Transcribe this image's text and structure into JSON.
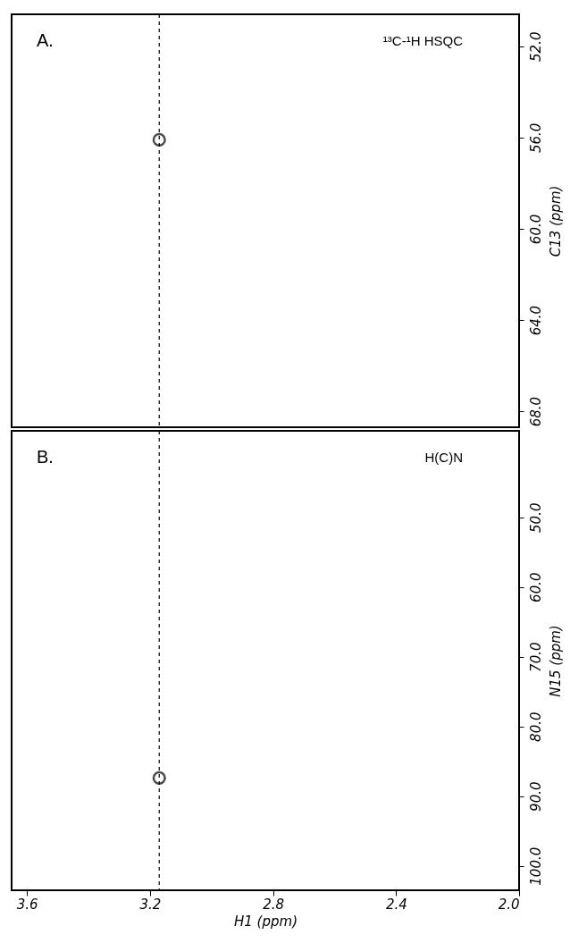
{
  "chart_data": [
    {
      "type": "scatter",
      "x": [
        3.17
      ],
      "values": [
        56.1
      ],
      "color": "#000000",
      "marker": "circle",
      "ylabel": "C13  (ppm)",
      "xlim": [
        3.65,
        2.0
      ],
      "ylim": [
        68.7,
        50.6
      ],
      "yticks": [
        {
          "value": 52,
          "label": "52.0"
        },
        {
          "value": 56,
          "label": "56.0"
        },
        {
          "value": 60,
          "label": "60.0"
        },
        {
          "value": 64,
          "label": "64.0"
        },
        {
          "value": 68,
          "label": "68.0"
        }
      ],
      "tick_labels": "y",
      "grid": false,
      "annotations": [
        "A.",
        "¹³C-¹H HSQC"
      ],
      "ref_lines": [
        {
          "axis": "x",
          "value": 3.17,
          "label": null,
          "line_style": "dashed",
          "color": "#000000"
        }
      ]
    },
    {
      "type": "scatter",
      "x": [
        3.17
      ],
      "values": [
        87.4
      ],
      "color": "#000000",
      "marker": "circle",
      "xlabel": "H1  (ppm)",
      "ylabel": "N15  (ppm)",
      "xlim": [
        3.65,
        2.0
      ],
      "ylim": [
        103.5,
        37.6
      ],
      "xticks": [
        3.6,
        3.2,
        2.8,
        2.4,
        {
          "value": 2.0,
          "label": "2.0"
        }
      ],
      "yticks": [
        {
          "value": 50,
          "label": "50.0"
        },
        {
          "value": 60,
          "label": "60.0"
        },
        {
          "value": 70,
          "label": "70.0"
        },
        {
          "value": 80,
          "label": "80.0"
        },
        {
          "value": 90,
          "label": "90.0"
        },
        {
          "value": 100,
          "label": "100.0"
        }
      ],
      "grid": false,
      "annotations": [
        "B.",
        "H(C)N"
      ],
      "ref_lines": [
        {
          "axis": "x",
          "value": 3.17,
          "label": null,
          "line_style": "dashed",
          "color": "#000000"
        }
      ]
    }
  ]
}
